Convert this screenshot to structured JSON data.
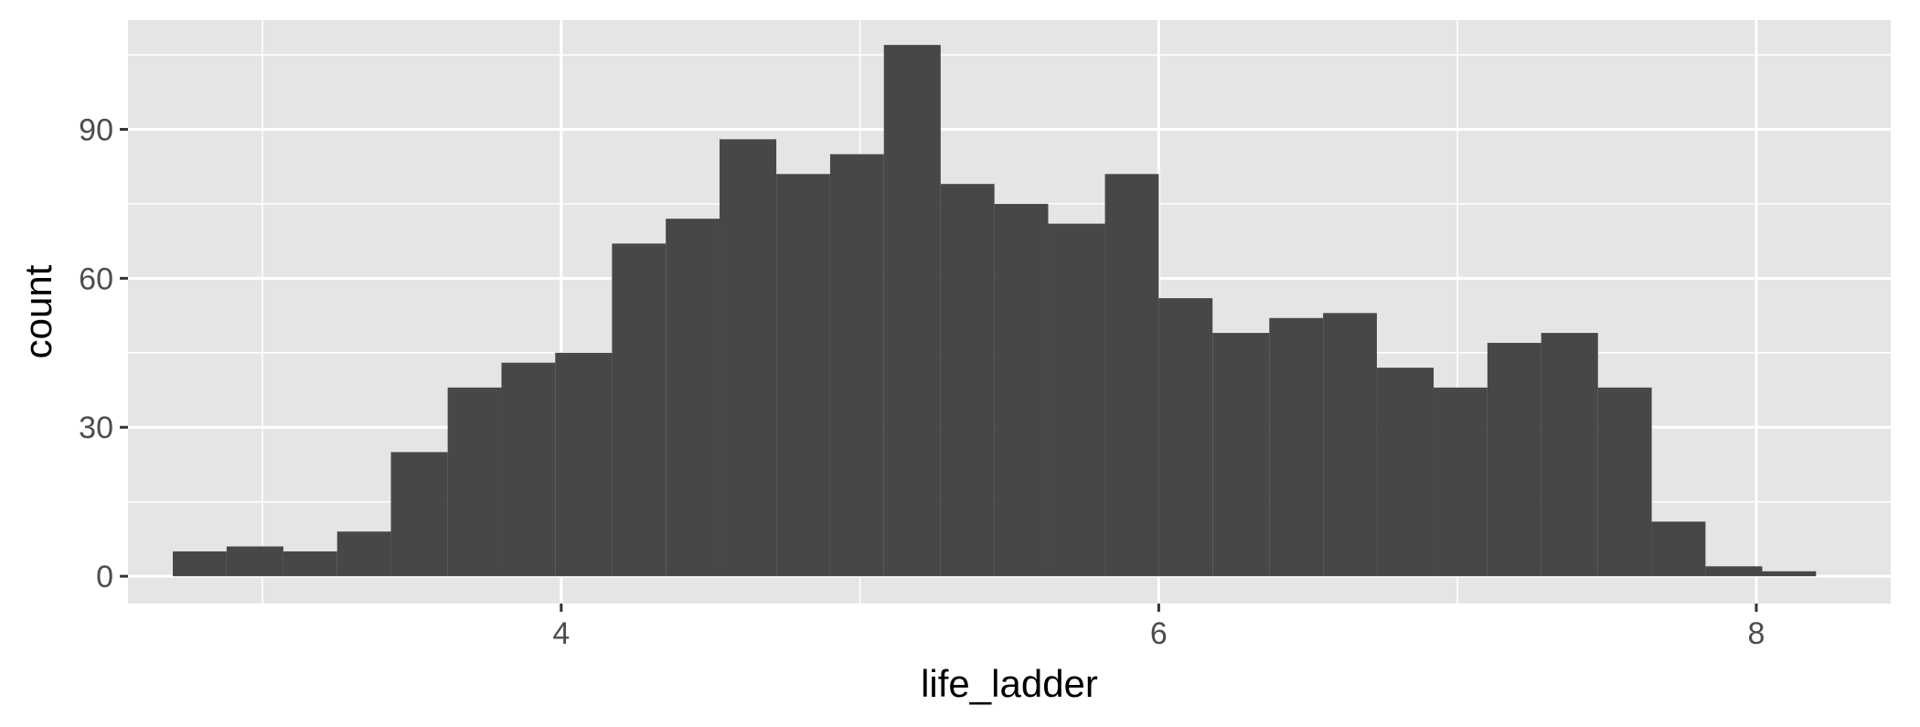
{
  "chart_data": {
    "type": "bar",
    "subtype": "histogram",
    "xlabel": "life_ladder",
    "ylabel": "count",
    "xlim": [
      2.55,
      8.45
    ],
    "ylim": [
      -5.5,
      112
    ],
    "x_ticks": [
      4,
      6,
      8
    ],
    "y_ticks": [
      0,
      30,
      60,
      90
    ],
    "grid": true,
    "colors": {
      "panel": "#e5e5e5",
      "bar": "#474747",
      "grid": "#ffffff"
    },
    "bins": [
      {
        "start": 2.7,
        "end": 2.88,
        "count": 5
      },
      {
        "start": 2.88,
        "end": 3.07,
        "count": 6
      },
      {
        "start": 3.07,
        "end": 3.25,
        "count": 5
      },
      {
        "start": 3.25,
        "end": 3.43,
        "count": 9
      },
      {
        "start": 3.43,
        "end": 3.62,
        "count": 25
      },
      {
        "start": 3.62,
        "end": 3.8,
        "count": 38
      },
      {
        "start": 3.8,
        "end": 3.98,
        "count": 43
      },
      {
        "start": 3.98,
        "end": 4.17,
        "count": 45
      },
      {
        "start": 4.17,
        "end": 4.35,
        "count": 67
      },
      {
        "start": 4.35,
        "end": 4.53,
        "count": 72
      },
      {
        "start": 4.53,
        "end": 4.72,
        "count": 88
      },
      {
        "start": 4.72,
        "end": 4.9,
        "count": 81
      },
      {
        "start": 4.9,
        "end": 5.08,
        "count": 85
      },
      {
        "start": 5.08,
        "end": 5.27,
        "count": 107
      },
      {
        "start": 5.27,
        "end": 5.45,
        "count": 79
      },
      {
        "start": 5.45,
        "end": 5.63,
        "count": 75
      },
      {
        "start": 5.63,
        "end": 5.82,
        "count": 71
      },
      {
        "start": 5.82,
        "end": 6.0,
        "count": 81
      },
      {
        "start": 6.0,
        "end": 6.18,
        "count": 56
      },
      {
        "start": 6.18,
        "end": 6.37,
        "count": 49
      },
      {
        "start": 6.37,
        "end": 6.55,
        "count": 52
      },
      {
        "start": 6.55,
        "end": 6.73,
        "count": 53
      },
      {
        "start": 6.73,
        "end": 6.92,
        "count": 42
      },
      {
        "start": 6.92,
        "end": 7.1,
        "count": 38
      },
      {
        "start": 7.1,
        "end": 7.28,
        "count": 47
      },
      {
        "start": 7.28,
        "end": 7.47,
        "count": 49
      },
      {
        "start": 7.47,
        "end": 7.65,
        "count": 38
      },
      {
        "start": 7.65,
        "end": 7.83,
        "count": 11
      },
      {
        "start": 7.83,
        "end": 8.02,
        "count": 2
      },
      {
        "start": 8.02,
        "end": 8.2,
        "count": 1
      }
    ]
  }
}
